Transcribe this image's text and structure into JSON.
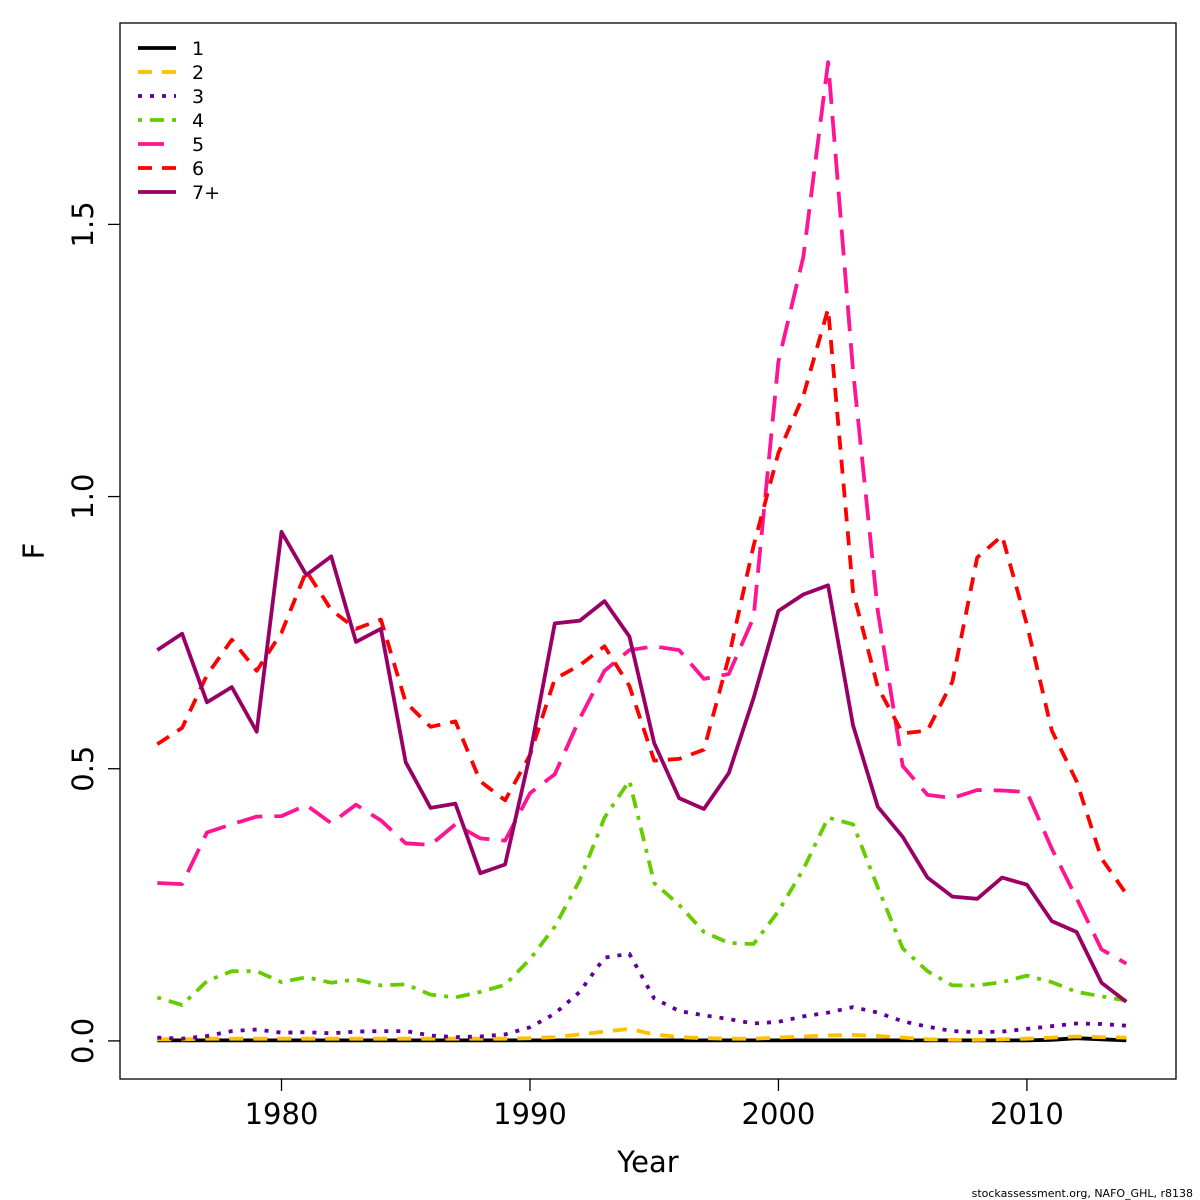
{
  "chart_data": {
    "type": "line",
    "title": "",
    "xlabel": "Year",
    "ylabel": "F",
    "xlim": [
      1973.5,
      2016
    ],
    "ylim": [
      -0.07,
      1.87
    ],
    "x_ticks": [
      "1980",
      "1990",
      "2000",
      "2010"
    ],
    "y_ticks": [
      "0.0",
      "0.5",
      "1.0",
      "1.5"
    ],
    "legend_position": "top-left",
    "x": [
      1975,
      1976,
      1977,
      1978,
      1979,
      1980,
      1981,
      1982,
      1983,
      1984,
      1985,
      1986,
      1987,
      1988,
      1989,
      1990,
      1991,
      1992,
      1993,
      1994,
      1995,
      1996,
      1997,
      1998,
      1999,
      2000,
      2001,
      2002,
      2003,
      2004,
      2005,
      2006,
      2007,
      2008,
      2009,
      2010,
      2011,
      2012,
      2013,
      2014
    ],
    "series": [
      {
        "name": "1",
        "color": "#000000",
        "dash": "solid",
        "values": [
          0.001,
          0.001,
          0.001,
          0.001,
          0.001,
          0.001,
          0.001,
          0.001,
          0.001,
          0.001,
          0.001,
          0.001,
          0.001,
          0.001,
          0.001,
          0.001,
          0.001,
          0.001,
          0.001,
          0.001,
          0.001,
          0.001,
          0.001,
          0.001,
          0.001,
          0.001,
          0.001,
          0.001,
          0.001,
          0.001,
          0.001,
          0.001,
          0.001,
          0.001,
          0.001,
          0.001,
          0.002,
          0.005,
          0.003,
          0.001
        ]
      },
      {
        "name": "2",
        "color": "#FFC000",
        "dash": "dashed",
        "values": [
          0.003,
          0.003,
          0.004,
          0.004,
          0.004,
          0.004,
          0.004,
          0.004,
          0.004,
          0.004,
          0.004,
          0.004,
          0.004,
          0.004,
          0.004,
          0.005,
          0.007,
          0.012,
          0.017,
          0.022,
          0.012,
          0.007,
          0.005,
          0.004,
          0.004,
          0.006,
          0.008,
          0.01,
          0.011,
          0.009,
          0.006,
          0.003,
          0.002,
          0.002,
          0.003,
          0.004,
          0.006,
          0.008,
          0.007,
          0.006
        ]
      },
      {
        "name": "3",
        "color": "#5E0099",
        "dash": "dotted",
        "values": [
          0.006,
          0.004,
          0.009,
          0.018,
          0.021,
          0.015,
          0.016,
          0.014,
          0.017,
          0.018,
          0.018,
          0.01,
          0.007,
          0.008,
          0.012,
          0.025,
          0.05,
          0.09,
          0.153,
          0.16,
          0.078,
          0.055,
          0.047,
          0.04,
          0.032,
          0.035,
          0.045,
          0.052,
          0.062,
          0.052,
          0.036,
          0.026,
          0.018,
          0.016,
          0.017,
          0.022,
          0.027,
          0.032,
          0.031,
          0.028
        ]
      },
      {
        "name": "4",
        "color": "#66CC00",
        "dash": "dotdash",
        "values": [
          0.08,
          0.066,
          0.11,
          0.128,
          0.128,
          0.108,
          0.117,
          0.107,
          0.113,
          0.102,
          0.104,
          0.085,
          0.08,
          0.09,
          0.103,
          0.15,
          0.21,
          0.295,
          0.41,
          0.478,
          0.29,
          0.25,
          0.2,
          0.18,
          0.178,
          0.238,
          0.315,
          0.41,
          0.398,
          0.282,
          0.17,
          0.128,
          0.102,
          0.102,
          0.108,
          0.12,
          0.108,
          0.09,
          0.082,
          0.074
        ]
      },
      {
        "name": "5",
        "color": "#FF1493",
        "dash": "longdash",
        "values": [
          0.29,
          0.288,
          0.383,
          0.398,
          0.412,
          0.413,
          0.433,
          0.4,
          0.434,
          0.405,
          0.363,
          0.36,
          0.398,
          0.372,
          0.368,
          0.455,
          0.49,
          0.592,
          0.68,
          0.718,
          0.725,
          0.718,
          0.665,
          0.674,
          0.778,
          1.248,
          1.44,
          1.798,
          1.232,
          0.79,
          0.505,
          0.452,
          0.446,
          0.461,
          0.46,
          0.457,
          0.353,
          0.262,
          0.168,
          0.142
        ]
      },
      {
        "name": "6",
        "color": "#FF0000",
        "dash": "dashed",
        "values": [
          0.545,
          0.575,
          0.672,
          0.737,
          0.68,
          0.75,
          0.863,
          0.792,
          0.757,
          0.774,
          0.622,
          0.577,
          0.587,
          0.477,
          0.442,
          0.525,
          0.665,
          0.69,
          0.725,
          0.652,
          0.515,
          0.518,
          0.535,
          0.705,
          0.91,
          1.08,
          1.185,
          1.345,
          0.825,
          0.65,
          0.565,
          0.57,
          0.66,
          0.888,
          0.928,
          0.765,
          0.57,
          0.477,
          0.335,
          0.27
        ]
      },
      {
        "name": "7+",
        "color": "#990066",
        "dash": "solid",
        "values": [
          0.718,
          0.748,
          0.622,
          0.65,
          0.568,
          0.935,
          0.856,
          0.89,
          0.733,
          0.757,
          0.512,
          0.428,
          0.436,
          0.308,
          0.324,
          0.526,
          0.767,
          0.772,
          0.808,
          0.743,
          0.547,
          0.446,
          0.426,
          0.492,
          0.63,
          0.79,
          0.82,
          0.837,
          0.58,
          0.43,
          0.375,
          0.3,
          0.265,
          0.261,
          0.3,
          0.287,
          0.22,
          0.2,
          0.107,
          0.072
        ]
      }
    ]
  },
  "credit": "stockassessment.org, NAFO_GHL, r8138"
}
